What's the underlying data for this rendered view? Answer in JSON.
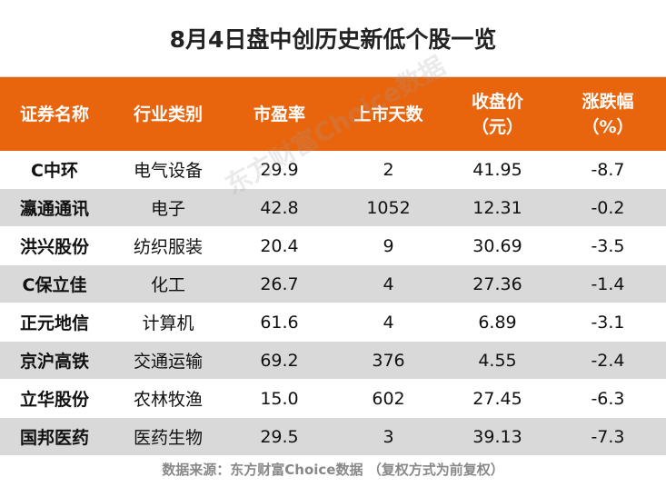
{
  "title": "8月4日盘中创历史新低个股一览",
  "headers": [
    {
      "line1": "证券名称",
      "line2": ""
    },
    {
      "line1": "行业类别",
      "line2": ""
    },
    {
      "line1": "市盈率",
      "line2": ""
    },
    {
      "line1": "上市天数",
      "line2": ""
    },
    {
      "line1": "收盘价",
      "line2": "（元）"
    },
    {
      "line1": "涨跌幅",
      "line2": "（%）"
    }
  ],
  "rows": [
    [
      "C中环",
      "电气设备",
      "29.9",
      "2",
      "41.95",
      "-8.7"
    ],
    [
      "瀛通通讯",
      "电子",
      "42.8",
      "1052",
      "12.31",
      "-0.2"
    ],
    [
      "洪兴股份",
      "纺织服装",
      "20.4",
      "9",
      "30.69",
      "-3.5"
    ],
    [
      "C保立佳",
      "化工",
      "26.7",
      "4",
      "27.36",
      "-1.4"
    ],
    [
      "正元地信",
      "计算机",
      "61.6",
      "4",
      "6.89",
      "-3.1"
    ],
    [
      "京沪高铁",
      "交通运输",
      "69.2",
      "376",
      "4.55",
      "-2.4"
    ],
    [
      "立华股份",
      "农林牧渔",
      "15.0",
      "602",
      "27.45",
      "-6.3"
    ],
    [
      "国邦医药",
      "医药生物",
      "29.5",
      "3",
      "39.13",
      "-7.3"
    ]
  ],
  "footer": "数据来源：东方财富Choice数据 （复权方式为前复权）",
  "watermark": "东方财富Choice数据",
  "colors": {
    "header_bg": "#e8650e",
    "stripe": "#d9d9d9"
  }
}
